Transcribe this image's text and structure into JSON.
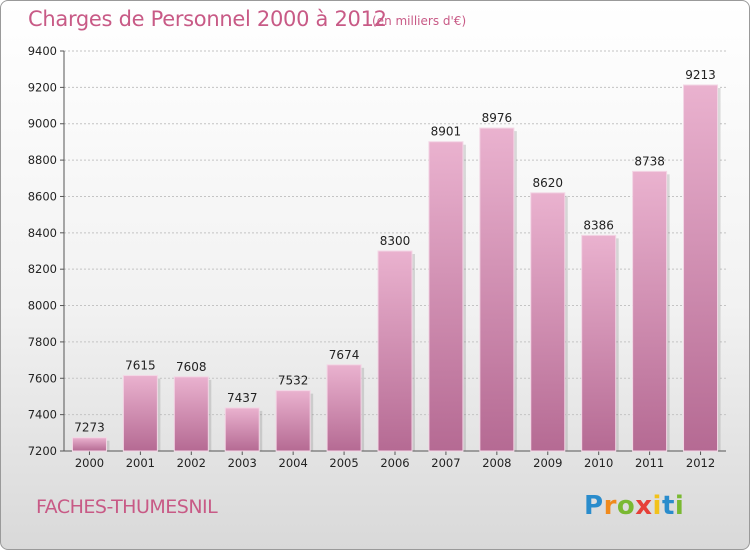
{
  "header": {
    "title": "Charges de Personnel 2000 à 2012",
    "subtitle": "(en milliers d'€)"
  },
  "footer": {
    "city": "FACHES-THUMESNIL",
    "logo": {
      "letters": [
        "P",
        "r",
        "o",
        "x",
        "i",
        "t",
        "i"
      ],
      "text": "Proxiti"
    }
  },
  "chart_data": {
    "type": "bar",
    "title": "Charges de Personnel 2000 à 2012",
    "subtitle": "(en milliers d'€)",
    "xlabel": "",
    "ylabel": "",
    "categories": [
      "2000",
      "2001",
      "2002",
      "2003",
      "2004",
      "2005",
      "2006",
      "2007",
      "2008",
      "2009",
      "2010",
      "2011",
      "2012"
    ],
    "values": [
      7273,
      7615,
      7608,
      7437,
      7532,
      7674,
      8300,
      8901,
      8976,
      8620,
      8386,
      8738,
      9213
    ],
    "ylim": [
      7200,
      9400
    ],
    "yticks": [
      7200,
      7400,
      7600,
      7800,
      8000,
      8200,
      8400,
      8600,
      8800,
      9000,
      9200,
      9400
    ],
    "grid": true,
    "bar_color": "#d98db3",
    "bar_color_light": "#eab2cf",
    "bar_color_dark": "#b56a93"
  }
}
